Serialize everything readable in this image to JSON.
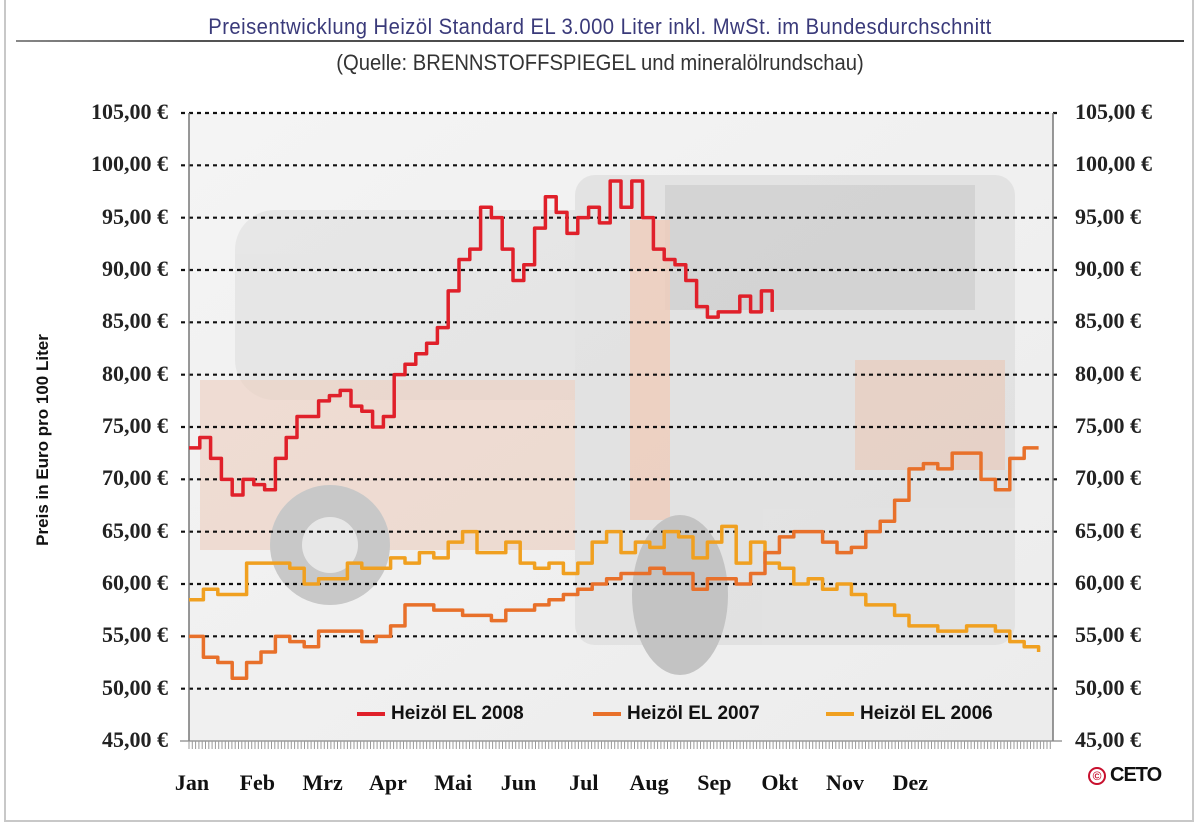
{
  "header": {
    "title": "Preisentwicklung Heizöl Standard EL 3.000 Liter inkl. MwSt. im Bundesdurchschnitt",
    "subtitle": "(Quelle: BRENNSTOFFSPIEGEL und mineralölrundschau)"
  },
  "axes": {
    "ylabel": "Preis in Euro pro 100 Liter",
    "yticks": [
      "105,00 €",
      "100,00 €",
      "95,00 €",
      "90,00 €",
      "85,00 €",
      "80,00 €",
      "75,00 €",
      "70,00 €",
      "65,00 €",
      "60,00 €",
      "55,00 €",
      "50,00 €",
      "45,00 €"
    ],
    "xticks": [
      "Jan",
      "Feb",
      "Mrz",
      "Apr",
      "Mai",
      "Jun",
      "Jul",
      "Aug",
      "Sep",
      "Okt",
      "Nov",
      "Dez"
    ]
  },
  "legend": [
    {
      "label": "Heizöl EL 2008",
      "color": "#e0202a"
    },
    {
      "label": "Heizöl EL 2007",
      "color": "#e8702a"
    },
    {
      "label": "Heizöl EL 2006",
      "color": "#f0a020"
    }
  ],
  "logo": {
    "copyright": "©",
    "text": "CETO"
  },
  "chart_data": {
    "type": "line",
    "title": "Preisentwicklung Heizöl Standard EL 3.000 Liter inkl. MwSt. im Bundesdurchschnitt",
    "subtitle": "(Quelle: BRENNSTOFFSPIEGEL und mineralölrundschau)",
    "xlabel": "",
    "ylabel": "Preis in Euro pro 100 Liter",
    "ylim": [
      45,
      105
    ],
    "yticks": [
      45,
      50,
      55,
      60,
      65,
      70,
      75,
      80,
      85,
      90,
      95,
      100,
      105
    ],
    "grid": "horizontal dotted",
    "legend_position": "bottom inside",
    "x_unit": "month (0 = start of Jan, 12 = end of Dez)",
    "categories": [
      "Jan",
      "Feb",
      "Mrz",
      "Apr",
      "Mai",
      "Jun",
      "Jul",
      "Aug",
      "Sep",
      "Okt",
      "Nov",
      "Dez"
    ],
    "series": [
      {
        "name": "Heizöl EL 2008",
        "color": "#e0202a",
        "x": [
          0,
          0.15,
          0.3,
          0.45,
          0.6,
          0.75,
          0.9,
          1.05,
          1.2,
          1.35,
          1.5,
          1.65,
          1.8,
          1.95,
          2.1,
          2.25,
          2.4,
          2.55,
          2.7,
          2.85,
          3.0,
          3.15,
          3.3,
          3.45,
          3.6,
          3.75,
          3.9,
          4.05,
          4.2,
          4.35,
          4.5,
          4.65,
          4.8,
          4.95,
          5.1,
          5.25,
          5.4,
          5.55,
          5.7,
          5.85,
          6.0,
          6.15,
          6.3,
          6.45,
          6.6,
          6.75,
          6.9,
          7.05,
          7.2,
          7.35,
          7.5,
          7.65,
          7.8,
          7.95,
          8.1
        ],
        "values": [
          73,
          74,
          72,
          70,
          68.5,
          70,
          69.5,
          69,
          72,
          74,
          76,
          76,
          77.5,
          78,
          78.5,
          77,
          76.5,
          75,
          76,
          80,
          81,
          82,
          83,
          84.5,
          88,
          91,
          92,
          96,
          95,
          92,
          89,
          90.5,
          94,
          97,
          95.5,
          93.5,
          95,
          96,
          94.5,
          98.5,
          96,
          98.5,
          95,
          92,
          91,
          90.5,
          89,
          86.5,
          85.5,
          86,
          86,
          87.5,
          86,
          88,
          86
        ]
      },
      {
        "name": "Heizöl EL 2007",
        "color": "#e8702a",
        "x": [
          0,
          0.2,
          0.4,
          0.6,
          0.8,
          1.0,
          1.2,
          1.4,
          1.6,
          1.8,
          2.0,
          2.2,
          2.4,
          2.6,
          2.8,
          3.0,
          3.2,
          3.4,
          3.6,
          3.8,
          4.0,
          4.2,
          4.4,
          4.6,
          4.8,
          5.0,
          5.2,
          5.4,
          5.6,
          5.8,
          6.0,
          6.2,
          6.4,
          6.6,
          6.8,
          7.0,
          7.2,
          7.4,
          7.6,
          7.8,
          8.0,
          8.2,
          8.4,
          8.6,
          8.8,
          9.0,
          9.2,
          9.4,
          9.6,
          9.8,
          10.0,
          10.2,
          10.4,
          10.6,
          10.8,
          11.0,
          11.2,
          11.4,
          11.6,
          11.8
        ],
        "values": [
          55,
          53,
          52.5,
          51,
          52.5,
          53.5,
          55,
          54.5,
          54,
          55.5,
          55.5,
          55.5,
          54.5,
          55,
          56,
          58,
          58,
          57.5,
          57.5,
          57,
          57,
          56.5,
          57.5,
          57.5,
          58,
          58.5,
          59,
          59.5,
          60,
          60.5,
          61,
          61,
          61.5,
          61,
          61,
          59.5,
          60.5,
          60.5,
          60,
          61,
          63,
          64.5,
          65,
          65,
          64,
          63,
          63.5,
          65,
          66,
          68,
          71,
          71.5,
          71,
          72.5,
          72.5,
          70,
          69,
          72,
          73,
          73
        ]
      },
      {
        "name": "Heizöl EL 2006",
        "color": "#f0a020",
        "x": [
          0,
          0.2,
          0.4,
          0.6,
          0.8,
          1.0,
          1.2,
          1.4,
          1.6,
          1.8,
          2.0,
          2.2,
          2.4,
          2.6,
          2.8,
          3.0,
          3.2,
          3.4,
          3.6,
          3.8,
          4.0,
          4.2,
          4.4,
          4.6,
          4.8,
          5.0,
          5.2,
          5.4,
          5.6,
          5.8,
          6.0,
          6.2,
          6.4,
          6.6,
          6.8,
          7.0,
          7.2,
          7.4,
          7.6,
          7.8,
          8.0,
          8.2,
          8.4,
          8.6,
          8.8,
          9.0,
          9.2,
          9.4,
          9.6,
          9.8,
          10.0,
          10.2,
          10.4,
          10.6,
          10.8,
          11.0,
          11.2,
          11.4,
          11.6,
          11.8
        ],
        "values": [
          58.5,
          59.5,
          59,
          59,
          62,
          62,
          62,
          61.5,
          60,
          60.5,
          60.5,
          62,
          61.5,
          61.5,
          62.5,
          62,
          63,
          62.5,
          64,
          65,
          63,
          63,
          64,
          62,
          61.5,
          62,
          61,
          62,
          64,
          65,
          63,
          64,
          63.5,
          65,
          64.5,
          62.5,
          64,
          65.5,
          62,
          64,
          62,
          61.5,
          60,
          60.5,
          59.5,
          60,
          59,
          58,
          58,
          57,
          56,
          56,
          55.5,
          55.5,
          56,
          56,
          55.5,
          54.5,
          54,
          53.5
        ]
      }
    ]
  }
}
